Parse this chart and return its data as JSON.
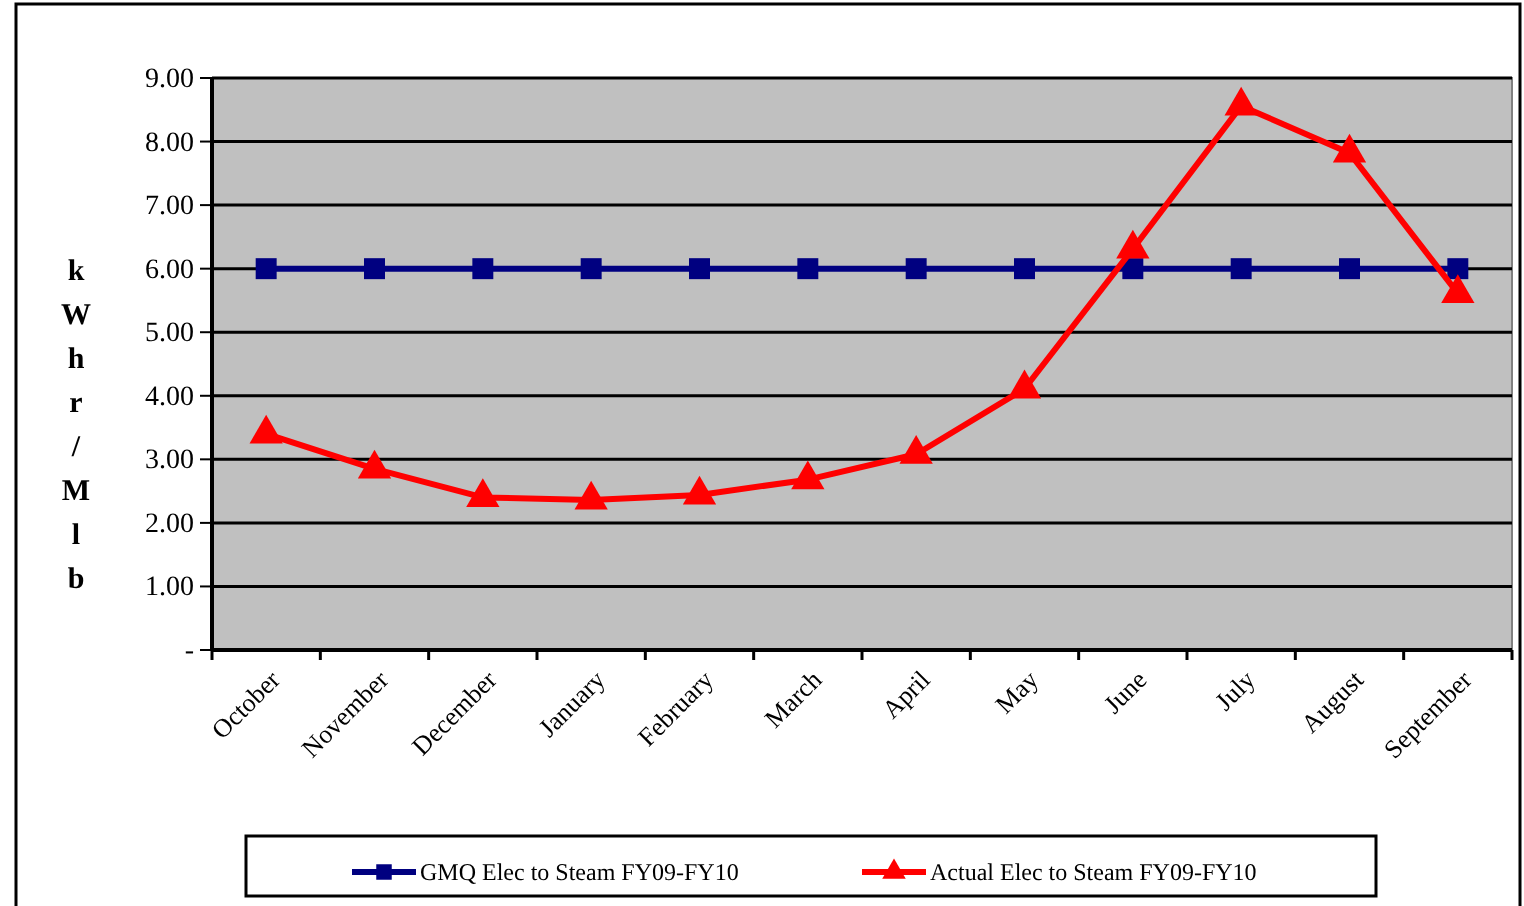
{
  "chart_data": {
    "type": "line",
    "ylabel": "kWhr/Mlb",
    "categories": [
      "October",
      "November",
      "December",
      "January",
      "February",
      "March",
      "April",
      "May",
      "June",
      "July",
      "August",
      "September"
    ],
    "series": [
      {
        "name": "GMQ Elec to Steam FY09-FY10",
        "color": "#000080",
        "marker": "square",
        "values": [
          6,
          6,
          6,
          6,
          6,
          6,
          6,
          6,
          6,
          6,
          6,
          6
        ]
      },
      {
        "name": "Actual Elec to Steam FY09-FY10",
        "color": "#ff0000",
        "marker": "triangle",
        "values": [
          3.4,
          2.85,
          2.4,
          2.36,
          2.44,
          2.68,
          3.08,
          4.11,
          6.31,
          8.56,
          7.82,
          5.61
        ]
      }
    ],
    "ylim": [
      0,
      9
    ],
    "yticks": [
      {
        "value": 0,
        "label": "-"
      },
      {
        "value": 1,
        "label": "1.00"
      },
      {
        "value": 2,
        "label": "2.00"
      },
      {
        "value": 3,
        "label": "3.00"
      },
      {
        "value": 4,
        "label": "4.00"
      },
      {
        "value": 5,
        "label": "5.00"
      },
      {
        "value": 6,
        "label": "6.00"
      },
      {
        "value": 7,
        "label": "7.00"
      },
      {
        "value": 8,
        "label": "8.00"
      },
      {
        "value": 9,
        "label": "9.00"
      }
    ],
    "grid": "y",
    "legend": "bottom"
  }
}
